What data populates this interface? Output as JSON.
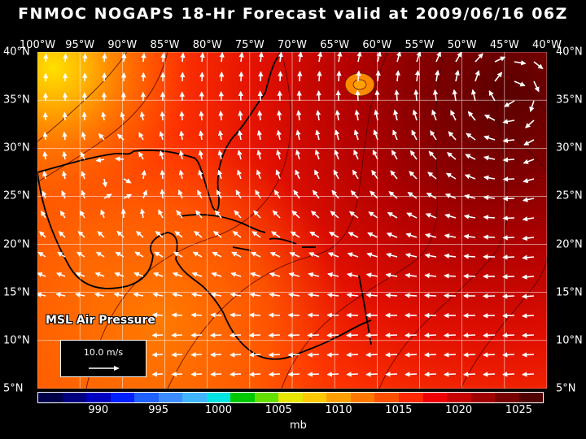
{
  "title": "FNMOC NOGAPS 18-Hr Forecast valid at 2009/06/16 06Z",
  "lon_labels": [
    "100°W",
    "95°W",
    "90°W",
    "85°W",
    "80°W",
    "75°W",
    "70°W",
    "65°W",
    "60°W",
    "55°W",
    "50°W",
    "45°W",
    "40°W"
  ],
  "lat_labels": [
    "40°N",
    "35°N",
    "30°N",
    "25°N",
    "20°N",
    "15°N",
    "10°N",
    "5°N"
  ],
  "field_label": "MSL Air Pressure",
  "reference_vector": "10.0 m/s",
  "colorbar": {
    "colors": [
      "#00004a",
      "#000080",
      "#0000c0",
      "#0020ff",
      "#2060ff",
      "#3c8cff",
      "#40b4ff",
      "#00e4e4",
      "#00c800",
      "#64e000",
      "#e6e600",
      "#ffc800",
      "#ffa000",
      "#ff7800",
      "#ff5000",
      "#ff2800",
      "#f00000",
      "#c80000",
      "#a00000",
      "#780000",
      "#500000"
    ],
    "tick_labels": [
      "990",
      "995",
      "1000",
      "1005",
      "1010",
      "1015",
      "1020",
      "1025"
    ],
    "unit": "mb"
  },
  "field_colors": {
    "high": "#6e0000",
    "mid_high": "#b40000",
    "mid": "#e61400",
    "low": "#ff3c00",
    "lower": "#ff6400",
    "lowest": "#ff9600",
    "min": "#ffd000"
  }
}
